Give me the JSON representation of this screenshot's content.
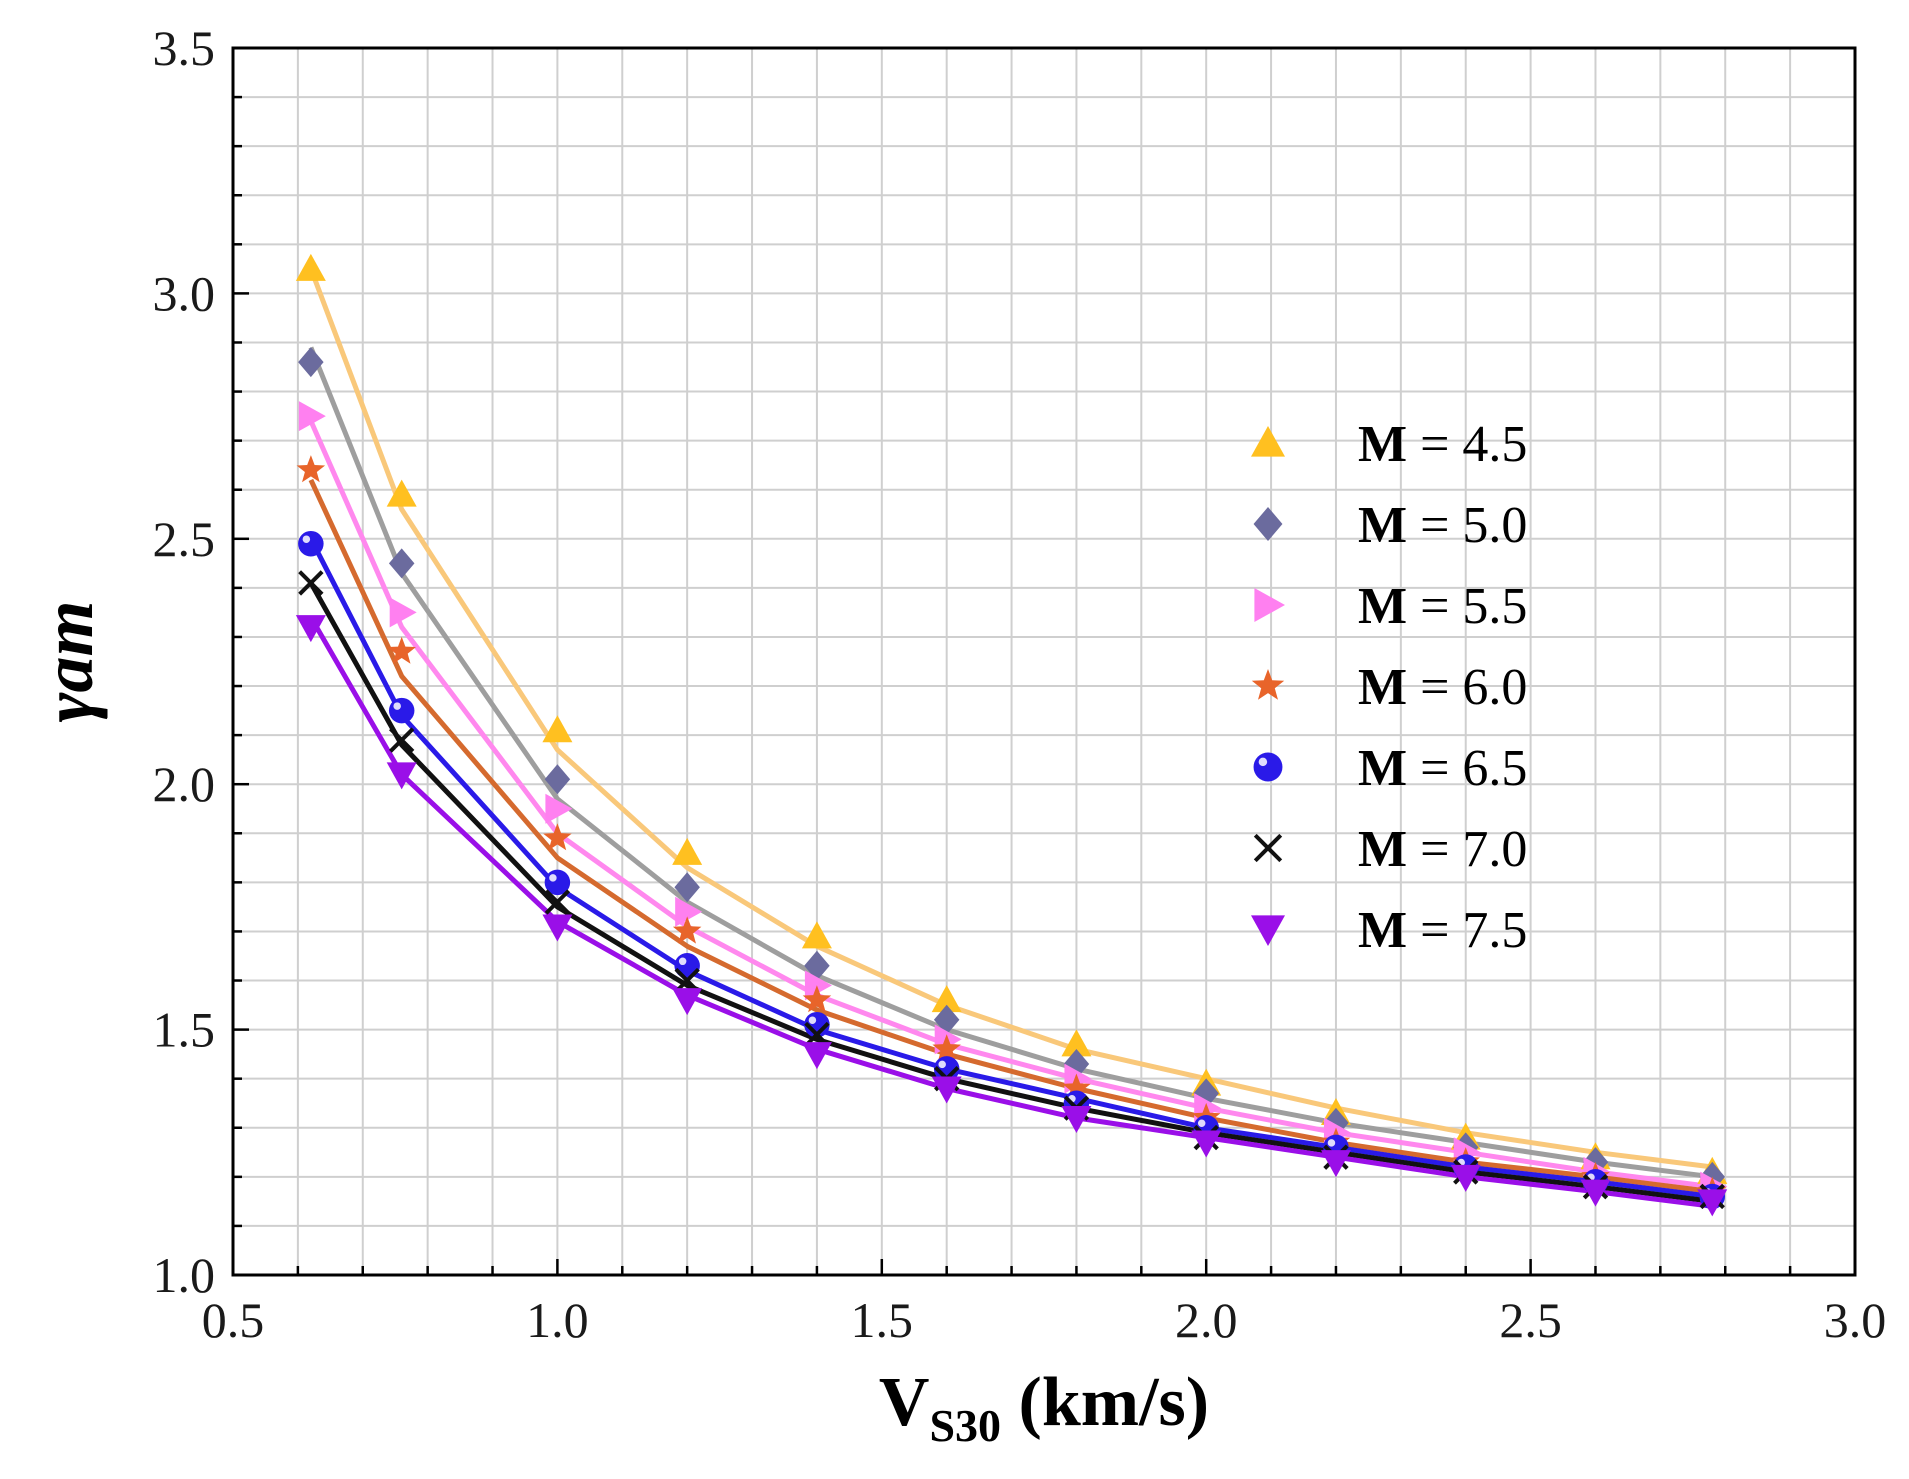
{
  "chart_data": {
    "type": "line",
    "title": "",
    "xlabel": {
      "main": "V",
      "sub": "S30",
      "unit": " (km/s)"
    },
    "ylabel": "γam",
    "xlim": [
      0.5,
      3.0
    ],
    "ylim": [
      1.0,
      3.5
    ],
    "xticks": [
      "0.5",
      "1.0",
      "1.5",
      "2.0",
      "2.5",
      "3.0"
    ],
    "yticks": [
      "1.0",
      "1.5",
      "2.0",
      "2.5",
      "3.0",
      "3.5"
    ],
    "grid": true,
    "legend_position": "right",
    "x": [
      0.62,
      0.76,
      1.0,
      1.2,
      1.4,
      1.6,
      1.8,
      2.0,
      2.2,
      2.4,
      2.6,
      2.78
    ],
    "series": [
      {
        "name": "M = 4.5",
        "legend_prefix": "M",
        "legend_suffix": " = 4.5",
        "marker": "triangle-up",
        "marker_color": "#FFC020",
        "line_color": "#F9C87A",
        "values": [
          3.05,
          2.59,
          2.11,
          1.86,
          1.69,
          1.56,
          1.47,
          1.39,
          1.33,
          1.28,
          1.24,
          1.21
        ],
        "fit": [
          3.05,
          2.56,
          2.07,
          1.83,
          1.67,
          1.55,
          1.46,
          1.4,
          1.34,
          1.29,
          1.25,
          1.22
        ]
      },
      {
        "name": "M = 5.0",
        "legend_prefix": "M",
        "legend_suffix": " = 5.0",
        "marker": "diamond",
        "marker_color": "#6B6B9E",
        "line_color": "#9E9E9E",
        "values": [
          2.86,
          2.45,
          2.01,
          1.79,
          1.63,
          1.52,
          1.43,
          1.37,
          1.31,
          1.26,
          1.23,
          1.2
        ],
        "fit": [
          2.89,
          2.43,
          1.97,
          1.76,
          1.61,
          1.5,
          1.42,
          1.36,
          1.31,
          1.27,
          1.23,
          1.2
        ]
      },
      {
        "name": "M = 5.5",
        "legend_prefix": "M",
        "legend_suffix": " = 5.5",
        "marker": "triangle-right",
        "marker_color": "#FF80F0",
        "line_color": "#FF88EE",
        "values": [
          2.75,
          2.35,
          1.95,
          1.74,
          1.59,
          1.48,
          1.4,
          1.34,
          1.29,
          1.25,
          1.21,
          1.18
        ],
        "fit": [
          2.74,
          2.32,
          1.9,
          1.71,
          1.57,
          1.47,
          1.4,
          1.34,
          1.29,
          1.25,
          1.21,
          1.18
        ]
      },
      {
        "name": "M = 6.0",
        "legend_prefix": "M",
        "legend_suffix": " = 6.0",
        "marker": "star",
        "marker_color": "#E8642A",
        "line_color": "#D56A2E",
        "values": [
          2.64,
          2.27,
          1.89,
          1.7,
          1.56,
          1.46,
          1.38,
          1.32,
          1.27,
          1.23,
          1.2,
          1.17
        ],
        "fit": [
          2.62,
          2.22,
          1.85,
          1.67,
          1.54,
          1.45,
          1.38,
          1.32,
          1.27,
          1.23,
          1.2,
          1.17
        ]
      },
      {
        "name": "M = 6.5",
        "legend_prefix": "M",
        "legend_suffix": " = 6.5",
        "marker": "sphere",
        "marker_color": "#2A1AE8",
        "line_color": "#2A1AE8",
        "values": [
          2.49,
          2.15,
          1.8,
          1.63,
          1.51,
          1.42,
          1.35,
          1.3,
          1.26,
          1.22,
          1.19,
          1.16
        ],
        "fit": [
          2.5,
          2.14,
          1.79,
          1.62,
          1.5,
          1.42,
          1.36,
          1.3,
          1.26,
          1.22,
          1.19,
          1.16
        ]
      },
      {
        "name": "M = 7.0",
        "legend_prefix": "M",
        "legend_suffix": " = 7.0",
        "marker": "cross",
        "marker_color": "#111111",
        "line_color": "#111111",
        "values": [
          2.41,
          2.09,
          1.76,
          1.6,
          1.49,
          1.4,
          1.34,
          1.28,
          1.24,
          1.21,
          1.18,
          1.16
        ],
        "fit": [
          2.41,
          2.08,
          1.75,
          1.59,
          1.48,
          1.4,
          1.34,
          1.29,
          1.25,
          1.21,
          1.18,
          1.15
        ]
      },
      {
        "name": "M = 7.5",
        "legend_prefix": "M",
        "legend_suffix": " = 7.5",
        "marker": "triangle-down",
        "marker_color": "#9A0FE8",
        "line_color": "#9A0FE8",
        "values": [
          2.32,
          2.02,
          1.71,
          1.56,
          1.45,
          1.38,
          1.32,
          1.27,
          1.23,
          1.2,
          1.17,
          1.15
        ],
        "fit": [
          2.34,
          2.02,
          1.72,
          1.57,
          1.46,
          1.38,
          1.32,
          1.28,
          1.24,
          1.2,
          1.17,
          1.14
        ]
      }
    ]
  }
}
